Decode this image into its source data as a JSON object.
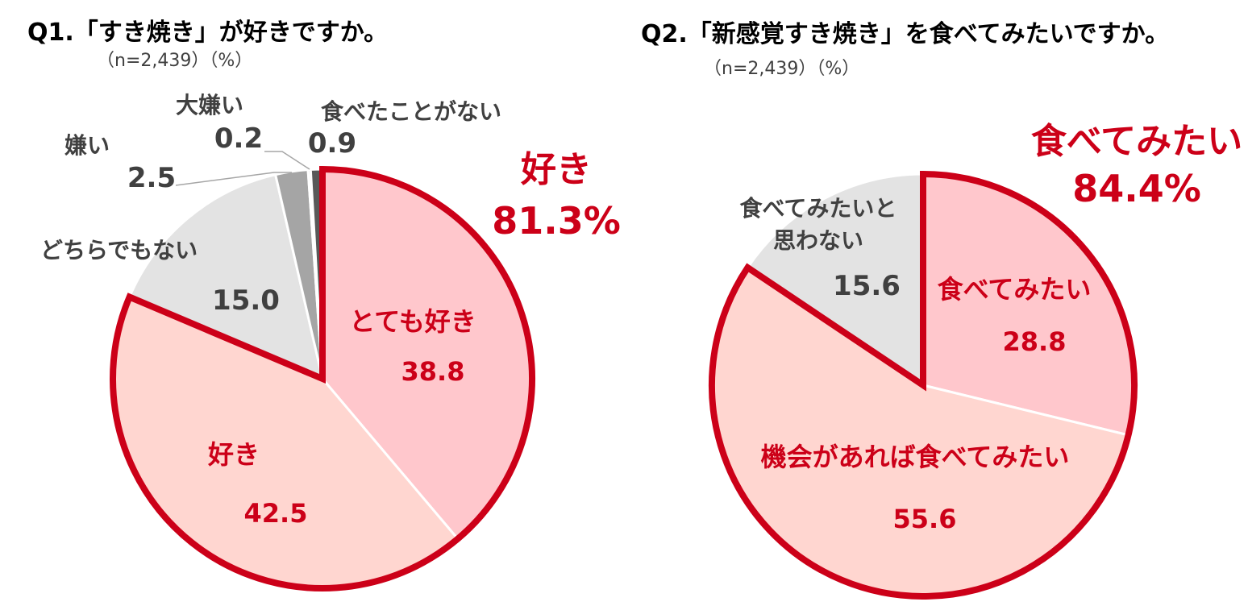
{
  "chart_data": [
    {
      "type": "pie",
      "title": "Q1.「すき焼き」が好きですか。",
      "subtitle": "（n=2,439）（%）",
      "slices": [
        {
          "label": "とても好き",
          "value": 38.8,
          "color": "#FFC7CC"
        },
        {
          "label": "好き",
          "value": 42.5,
          "color": "#FFD6D0"
        },
        {
          "label": "どちらでもない",
          "value": 15.0,
          "color": "#E3E3E3"
        },
        {
          "label": "嫌い",
          "value": 2.5,
          "color": "#A5A5A5"
        },
        {
          "label": "大嫌い",
          "value": 0.2,
          "color": "#D0D0D0"
        },
        {
          "label": "食べたことがない",
          "value": 0.9,
          "color": "#595959"
        }
      ],
      "highlight": {
        "label": "好き",
        "value": "81.3%",
        "color": "#CC0018"
      }
    },
    {
      "type": "pie",
      "title": "Q2.「新感覚すき焼き」を食べてみたいですか。",
      "subtitle": "（n=2,439）（%）",
      "slices": [
        {
          "label": "食べてみたい",
          "value": 28.8,
          "color": "#FFC7CC"
        },
        {
          "label": "機会があれば食べてみたい",
          "value": 55.6,
          "color": "#FFD6D0"
        },
        {
          "label": "食べてみたいと思わない",
          "label_lines": [
            "食べてみたいと",
            "思わない"
          ],
          "value": 15.6,
          "color": "#E3E3E3"
        }
      ],
      "highlight": {
        "label": "食べてみたい",
        "value": "84.4%",
        "color": "#CC0018"
      }
    }
  ],
  "colors": {
    "accent": "#CC0018",
    "text": "#404040",
    "title": "#000000"
  }
}
